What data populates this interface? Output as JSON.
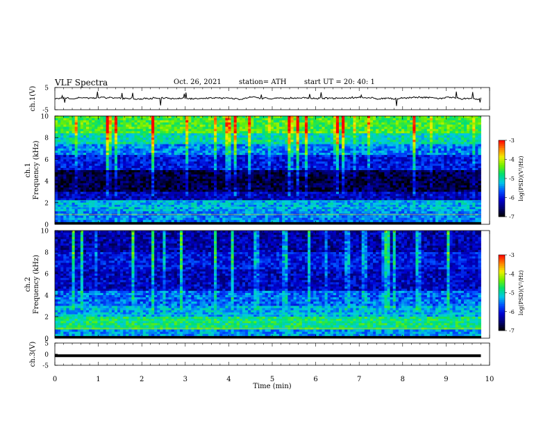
{
  "header": {
    "title": "VLF Spectra",
    "date": "Oct. 26, 2021",
    "station": "station= ATH",
    "start_time": "start  UT  =    20: 40: 1"
  },
  "colors": {
    "waveform": "#000000",
    "colormap": [
      "#000000",
      "#000070",
      "#0000d0",
      "#0050ff",
      "#00c8e6",
      "#00e070",
      "#70f000",
      "#f0f000",
      "#ff8000",
      "#ff0000",
      "#ffffff"
    ]
  },
  "chart_data": [
    {
      "type": "line",
      "name": "ch1-waveform",
      "ylabel": "ch.1(V)",
      "ylim": [
        -5,
        5
      ],
      "yticks": [
        "5",
        "-5"
      ],
      "baseline": 0.2,
      "noise_description": "continuous waveform with small amplitude variations and occasional spikes"
    },
    {
      "type": "heatmap",
      "name": "ch1-spectrogram",
      "ylabel_line1": "ch.1",
      "ylabel_line2": "Frequency  (kHz)",
      "ylim": [
        0,
        10
      ],
      "yticks": [
        "0",
        "2",
        "4",
        "6",
        "8",
        "10"
      ],
      "colorbar": {
        "label": "log(PSD)(V²/Hz)",
        "range": [
          -7,
          -3
        ],
        "ticks": [
          "-3",
          "-4",
          "-5",
          "-6",
          "-7"
        ]
      },
      "band_levels": [
        {
          "f": [
            8.5,
            10
          ],
          "level": -4.5
        },
        {
          "f": [
            7.5,
            8.5
          ],
          "level": -5.0
        },
        {
          "f": [
            6.5,
            7.5
          ],
          "level": -5.5
        },
        {
          "f": [
            5.0,
            6.5
          ],
          "level": -6.0
        },
        {
          "f": [
            3.0,
            5.0
          ],
          "level": -6.7
        },
        {
          "f": [
            2.2,
            3.0
          ],
          "level": -6.2
        },
        {
          "f": [
            1.2,
            2.2
          ],
          "level": -5.3
        },
        {
          "f": [
            0.3,
            1.2
          ],
          "level": -5.5
        },
        {
          "f": [
            0,
            0.3
          ],
          "level": -7.0
        }
      ]
    },
    {
      "type": "heatmap",
      "name": "ch2-spectrogram",
      "ylabel_line1": "ch.2",
      "ylabel_line2": "Frequency  (kHz)",
      "ylim": [
        0,
        10
      ],
      "yticks": [
        "0",
        "2",
        "4",
        "6",
        "8",
        "10"
      ],
      "colorbar": {
        "label": "log(PSD)(V²/Hz)",
        "range": [
          -7,
          -3
        ],
        "ticks": [
          "-3",
          "-4",
          "-5",
          "-6",
          "-7"
        ]
      },
      "band_levels": [
        {
          "f": [
            8.0,
            10
          ],
          "level": -6.3
        },
        {
          "f": [
            6.5,
            8.0
          ],
          "level": -6.0
        },
        {
          "f": [
            4.5,
            6.5
          ],
          "level": -6.2
        },
        {
          "f": [
            3.0,
            4.5
          ],
          "level": -5.6
        },
        {
          "f": [
            2.0,
            3.0
          ],
          "level": -5.3
        },
        {
          "f": [
            0.8,
            2.0
          ],
          "level": -4.8
        },
        {
          "f": [
            0,
            0.8
          ],
          "level": -5.4
        }
      ]
    },
    {
      "type": "line",
      "name": "ch3-waveform",
      "ylabel": "ch.3(V)",
      "ylim": [
        -5,
        5
      ],
      "yticks": [
        "5",
        "0",
        "-5"
      ],
      "baseline": -0.7
    }
  ],
  "x_axis": {
    "label": "Time  (min)",
    "xlim": [
      0,
      10
    ],
    "ticks": [
      "0",
      "1",
      "2",
      "3",
      "4",
      "5",
      "6",
      "7",
      "8",
      "9",
      "10"
    ],
    "data_end": 9.8
  }
}
